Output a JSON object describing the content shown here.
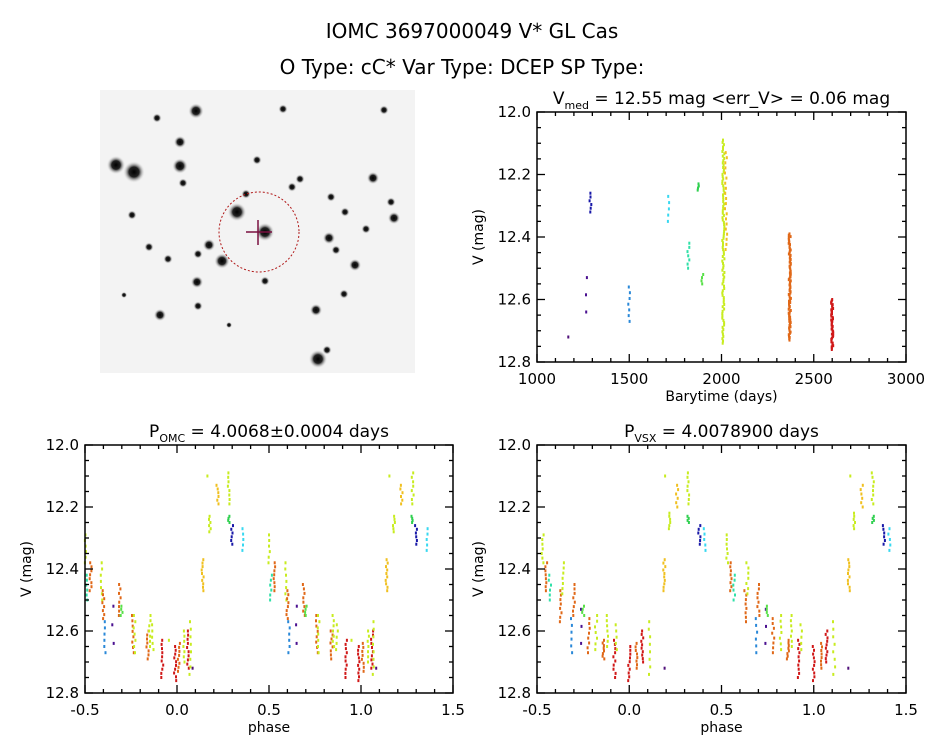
{
  "header": {
    "line1": "IOMC 3697000049   V* GL Cas",
    "line2": "O Type: cC*   Var Type: DCEP   SP Type:"
  },
  "colors": {
    "axis": "#000000",
    "target_marker": "#7a1040",
    "aperture_circle": "#b01818"
  },
  "chart_data": [
    {
      "id": "time",
      "type": "scatter",
      "title": {
        "sym": "V",
        "sub": "med",
        "rest": " = 12.55 mag <err_V> = 0.06 mag"
      },
      "xlabel": "Barytime (days)",
      "ylabel": "V (mag)",
      "xlim": [
        1000,
        3000
      ],
      "ylim": [
        12.8,
        12.0
      ],
      "xticks": [
        "1000",
        "1500",
        "2000",
        "2500",
        "3000"
      ],
      "yticks": [
        "12.0",
        "12.2",
        "12.4",
        "12.6",
        "12.8"
      ],
      "xminor": 100,
      "yminor": 0.05,
      "series": [
        {
          "t": 1170,
          "v_min": 12.72,
          "v_max": 12.72,
          "n": 1,
          "color": "#50107a"
        },
        {
          "t": 1270,
          "v_min": 12.53,
          "v_max": 12.64,
          "n": 3,
          "color": "#4a1090"
        },
        {
          "t": 1290,
          "v_min": 12.26,
          "v_max": 12.32,
          "n": 6,
          "color": "#1818a8"
        },
        {
          "t": 1500,
          "v_min": 12.56,
          "v_max": 12.67,
          "n": 7,
          "color": "#2a88d8"
        },
        {
          "t": 1715,
          "v_min": 12.27,
          "v_max": 12.35,
          "n": 5,
          "color": "#38d8f0"
        },
        {
          "t": 1820,
          "v_min": 12.42,
          "v_max": 12.5,
          "n": 7,
          "color": "#30e0a8"
        },
        {
          "t": 1875,
          "v_min": 12.23,
          "v_max": 12.25,
          "n": 4,
          "color": "#30d050"
        },
        {
          "t": 1895,
          "v_min": 12.52,
          "v_max": 12.55,
          "n": 4,
          "color": "#58e048"
        },
        {
          "t": 2010,
          "v_min": 12.09,
          "v_max": 12.74,
          "n": 90,
          "color": "#c8ec20"
        },
        {
          "t": 2025,
          "v_min": 12.13,
          "v_max": 12.44,
          "n": 20,
          "color": "#f0c020"
        },
        {
          "t": 2370,
          "v_min": 12.39,
          "v_max": 12.73,
          "n": 80,
          "color": "#e06818"
        },
        {
          "t": 2600,
          "v_min": 12.6,
          "v_max": 12.76,
          "n": 40,
          "color": "#d01818"
        }
      ]
    },
    {
      "id": "omc",
      "type": "scatter",
      "title": {
        "sym": "P",
        "sub": "OMC",
        "rest": " = 4.0068±0.0004 days"
      },
      "xlabel": "phase",
      "ylabel": "V (mag)",
      "xlim": [
        -0.5,
        1.5
      ],
      "ylim": [
        12.8,
        12.0
      ],
      "xticks": [
        "-0.5",
        "0.0",
        "0.5",
        "1.0",
        "1.5"
      ],
      "yticks": [
        "12.0",
        "12.2",
        "12.4",
        "12.6",
        "12.8"
      ],
      "xminor": 0.1,
      "yminor": 0.05,
      "phase_repeat": true,
      "points": [
        {
          "phase": -0.5,
          "v_min": 12.29,
          "v_max": 12.38,
          "n": 6,
          "season": 8
        },
        {
          "phase": -0.49,
          "v_min": 12.42,
          "v_max": 12.5,
          "n": 6,
          "season": 5
        },
        {
          "phase": -0.47,
          "v_min": 12.38,
          "v_max": 12.47,
          "n": 8,
          "season": 10
        },
        {
          "phase": -0.41,
          "v_min": 12.38,
          "v_max": 12.5,
          "n": 7,
          "season": 8
        },
        {
          "phase": -0.4,
          "v_min": 12.47,
          "v_max": 12.56,
          "n": 8,
          "season": 10
        },
        {
          "phase": -0.39,
          "v_min": 12.57,
          "v_max": 12.67,
          "n": 6,
          "season": 3
        },
        {
          "phase": -0.35,
          "v_min": 12.52,
          "v_max": 12.64,
          "n": 3,
          "season": 1
        },
        {
          "phase": -0.31,
          "v_min": 12.45,
          "v_max": 12.55,
          "n": 8,
          "season": 10
        },
        {
          "phase": -0.3,
          "v_min": 12.52,
          "v_max": 12.55,
          "n": 4,
          "season": 7
        },
        {
          "phase": -0.24,
          "v_min": 12.55,
          "v_max": 12.67,
          "n": 8,
          "season": 10
        },
        {
          "phase": -0.23,
          "v_min": 12.55,
          "v_max": 12.67,
          "n": 7,
          "season": 8
        },
        {
          "phase": -0.16,
          "v_min": 12.6,
          "v_max": 12.69,
          "n": 8,
          "season": 10
        },
        {
          "phase": -0.15,
          "v_min": 12.55,
          "v_max": 12.65,
          "n": 7,
          "season": 8
        },
        {
          "phase": -0.13,
          "v_min": 12.58,
          "v_max": 12.66,
          "n": 5,
          "season": 8
        },
        {
          "phase": -0.08,
          "v_min": 12.63,
          "v_max": 12.75,
          "n": 10,
          "season": 11
        },
        {
          "phase": -0.05,
          "v_min": 12.63,
          "v_max": 12.63,
          "n": 1,
          "season": 8
        },
        {
          "phase": -0.01,
          "v_min": 12.65,
          "v_max": 12.76,
          "n": 10,
          "season": 11
        },
        {
          "phase": 0.01,
          "v_min": 12.64,
          "v_max": 12.73,
          "n": 8,
          "season": 10
        },
        {
          "phase": 0.04,
          "v_min": 12.6,
          "v_max": 12.7,
          "n": 7,
          "season": 8
        },
        {
          "phase": 0.06,
          "v_min": 12.6,
          "v_max": 12.72,
          "n": 10,
          "season": 11
        },
        {
          "phase": 0.07,
          "v_min": 12.57,
          "v_max": 12.74,
          "n": 8,
          "season": 8
        },
        {
          "phase": 0.08,
          "v_min": 12.72,
          "v_max": 12.72,
          "n": 1,
          "season": 0
        },
        {
          "phase": 0.14,
          "v_min": 12.37,
          "v_max": 12.47,
          "n": 10,
          "season": 9
        },
        {
          "phase": 0.16,
          "v_min": 12.1,
          "v_max": 12.1,
          "n": 1,
          "season": 8
        },
        {
          "phase": 0.18,
          "v_min": 12.23,
          "v_max": 12.28,
          "n": 6,
          "season": 8
        },
        {
          "phase": 0.22,
          "v_min": 12.13,
          "v_max": 12.19,
          "n": 6,
          "season": 9
        },
        {
          "phase": 0.28,
          "v_min": 12.09,
          "v_max": 12.19,
          "n": 8,
          "season": 8
        },
        {
          "phase": 0.28,
          "v_min": 12.23,
          "v_max": 12.25,
          "n": 4,
          "season": 6
        },
        {
          "phase": 0.3,
          "v_min": 12.26,
          "v_max": 12.32,
          "n": 6,
          "season": 2
        },
        {
          "phase": 0.36,
          "v_min": 12.27,
          "v_max": 12.34,
          "n": 5,
          "season": 4
        }
      ]
    },
    {
      "id": "vsx",
      "type": "scatter",
      "title": {
        "sym": "P",
        "sub": "VSX",
        "rest": " = 4.0078900 days"
      },
      "xlabel": "phase",
      "ylabel": "V (mag)",
      "xlim": [
        -0.5,
        1.5
      ],
      "ylim": [
        12.8,
        12.0
      ],
      "xticks": [
        "-0.5",
        "0.0",
        "0.5",
        "1.0",
        "1.5"
      ],
      "yticks": [
        "12.0",
        "12.2",
        "12.4",
        "12.6",
        "12.8"
      ],
      "xminor": 0.1,
      "yminor": 0.05,
      "phase_repeat": true,
      "points": [
        {
          "phase": -0.47,
          "v_min": 12.29,
          "v_max": 12.38,
          "n": 7,
          "season": 8
        },
        {
          "phase": -0.45,
          "v_min": 12.38,
          "v_max": 12.47,
          "n": 8,
          "season": 10
        },
        {
          "phase": -0.43,
          "v_min": 12.42,
          "v_max": 12.5,
          "n": 6,
          "season": 5
        },
        {
          "phase": -0.37,
          "v_min": 12.47,
          "v_max": 12.57,
          "n": 8,
          "season": 10
        },
        {
          "phase": -0.36,
          "v_min": 12.38,
          "v_max": 12.48,
          "n": 7,
          "season": 8
        },
        {
          "phase": -0.31,
          "v_min": 12.56,
          "v_max": 12.67,
          "n": 6,
          "season": 3
        },
        {
          "phase": -0.3,
          "v_min": 12.45,
          "v_max": 12.55,
          "n": 8,
          "season": 10
        },
        {
          "phase": -0.26,
          "v_min": 12.53,
          "v_max": 12.64,
          "n": 3,
          "season": 1
        },
        {
          "phase": -0.25,
          "v_min": 12.52,
          "v_max": 12.55,
          "n": 4,
          "season": 7
        },
        {
          "phase": -0.22,
          "v_min": 12.56,
          "v_max": 12.67,
          "n": 8,
          "season": 10
        },
        {
          "phase": -0.18,
          "v_min": 12.55,
          "v_max": 12.66,
          "n": 7,
          "season": 8
        },
        {
          "phase": -0.14,
          "v_min": 12.63,
          "v_max": 12.69,
          "n": 8,
          "season": 10
        },
        {
          "phase": -0.12,
          "v_min": 12.55,
          "v_max": 12.65,
          "n": 7,
          "season": 8
        },
        {
          "phase": -0.08,
          "v_min": 12.63,
          "v_max": 12.75,
          "n": 10,
          "season": 11
        },
        {
          "phase": -0.07,
          "v_min": 12.58,
          "v_max": 12.66,
          "n": 5,
          "season": 8
        },
        {
          "phase": 0.0,
          "v_min": 12.65,
          "v_max": 12.76,
          "n": 10,
          "season": 11
        },
        {
          "phase": 0.04,
          "v_min": 12.64,
          "v_max": 12.72,
          "n": 8,
          "season": 10
        },
        {
          "phase": 0.07,
          "v_min": 12.6,
          "v_max": 12.7,
          "n": 10,
          "season": 11
        },
        {
          "phase": 0.11,
          "v_min": 12.57,
          "v_max": 12.74,
          "n": 8,
          "season": 8
        },
        {
          "phase": 0.19,
          "v_min": 12.72,
          "v_max": 12.72,
          "n": 1,
          "season": 0
        },
        {
          "phase": 0.19,
          "v_min": 12.37,
          "v_max": 12.47,
          "n": 10,
          "season": 9
        },
        {
          "phase": 0.2,
          "v_min": 12.1,
          "v_max": 12.1,
          "n": 1,
          "season": 8
        },
        {
          "phase": 0.22,
          "v_min": 12.22,
          "v_max": 12.27,
          "n": 6,
          "season": 8
        },
        {
          "phase": 0.26,
          "v_min": 12.13,
          "v_max": 12.2,
          "n": 6,
          "season": 9
        },
        {
          "phase": 0.32,
          "v_min": 12.09,
          "v_max": 12.19,
          "n": 8,
          "season": 8
        },
        {
          "phase": 0.32,
          "v_min": 12.23,
          "v_max": 12.25,
          "n": 4,
          "season": 6
        },
        {
          "phase": 0.38,
          "v_min": 12.26,
          "v_max": 12.32,
          "n": 6,
          "season": 2
        },
        {
          "phase": 0.41,
          "v_min": 12.27,
          "v_max": 12.34,
          "n": 5,
          "season": 4
        }
      ]
    }
  ]
}
